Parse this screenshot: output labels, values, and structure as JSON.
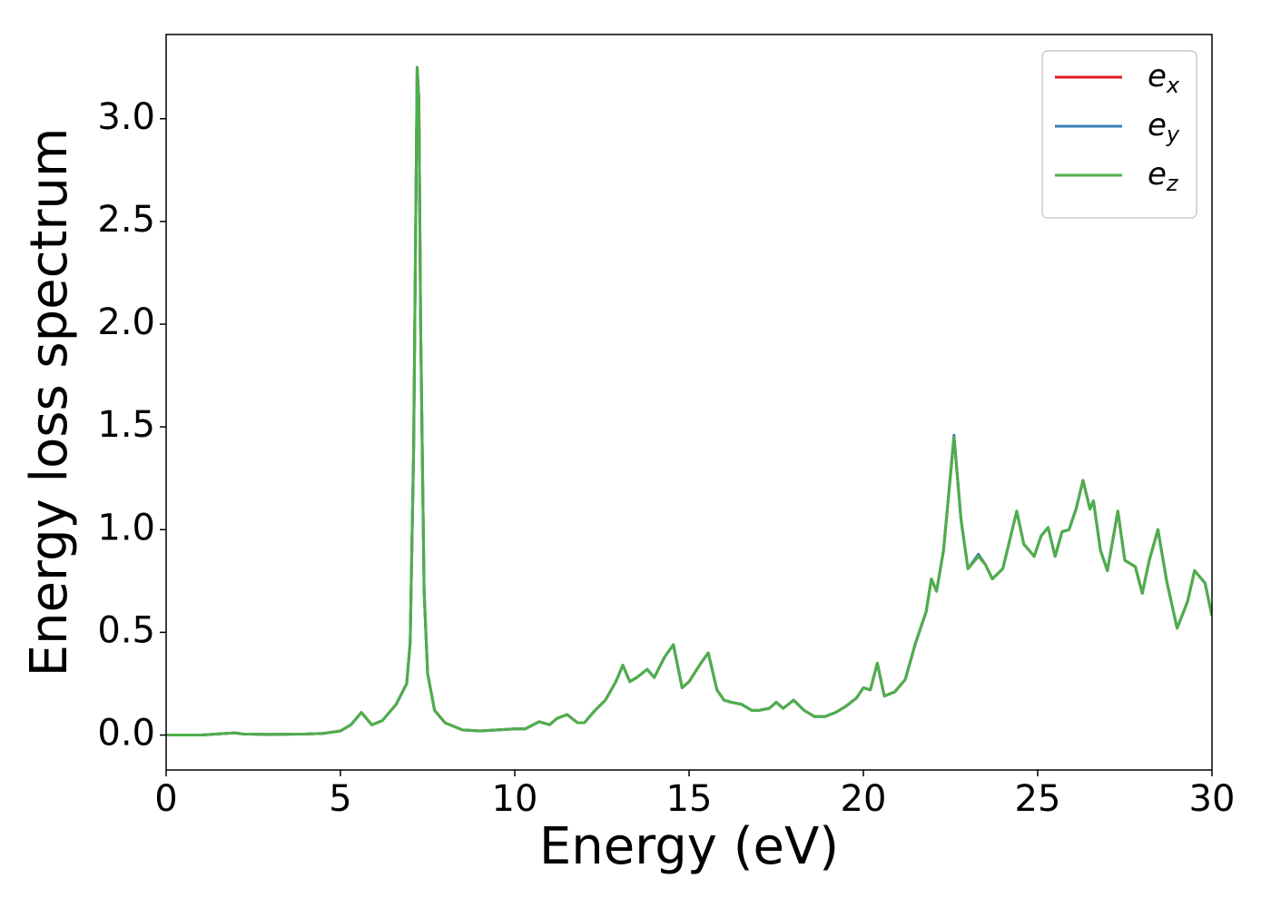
{
  "chart_data": {
    "type": "line",
    "xlabel": "Energy (eV)",
    "ylabel": "Energy loss spectrum",
    "x": [
      0,
      1,
      1.9,
      2.0,
      2.2,
      3,
      4,
      4.5,
      5,
      5.3,
      5.6,
      5.9,
      6.2,
      6.6,
      6.9,
      7.0,
      7.1,
      7.2,
      7.25,
      7.3,
      7.4,
      7.5,
      7.7,
      8.0,
      8.5,
      9,
      9.5,
      10,
      10.3,
      10.7,
      11,
      11.2,
      11.5,
      11.8,
      12,
      12.3,
      12.6,
      12.9,
      13.1,
      13.3,
      13.5,
      13.8,
      14.0,
      14.3,
      14.55,
      14.8,
      15.0,
      15.3,
      15.55,
      15.8,
      16.0,
      16.2,
      16.5,
      16.8,
      17.0,
      17.3,
      17.5,
      17.7,
      18.0,
      18.3,
      18.6,
      18.9,
      19.2,
      19.5,
      19.8,
      20.0,
      20.2,
      20.4,
      20.6,
      20.9,
      21.2,
      21.5,
      21.8,
      21.95,
      22.1,
      22.3,
      22.6,
      22.8,
      23.0,
      23.3,
      23.5,
      23.7,
      24.0,
      24.2,
      24.4,
      24.6,
      24.9,
      25.1,
      25.3,
      25.5,
      25.7,
      25.9,
      26.1,
      26.3,
      26.5,
      26.6,
      26.8,
      27.0,
      27.3,
      27.5,
      27.8,
      28.0,
      28.2,
      28.45,
      28.7,
      29.0,
      29.3,
      29.5,
      29.8,
      30.0
    ],
    "series": [
      {
        "name": "ex",
        "color": "#e41a1c",
        "values": [
          0,
          0,
          0.01,
          0.01,
          0.005,
          0.003,
          0.005,
          0.008,
          0.02,
          0.05,
          0.11,
          0.05,
          0.07,
          0.15,
          0.25,
          0.45,
          1.4,
          3.25,
          3.1,
          2.0,
          0.7,
          0.3,
          0.12,
          0.06,
          0.025,
          0.02,
          0.025,
          0.03,
          0.03,
          0.065,
          0.05,
          0.08,
          0.1,
          0.06,
          0.06,
          0.12,
          0.17,
          0.26,
          0.34,
          0.26,
          0.28,
          0.32,
          0.28,
          0.38,
          0.44,
          0.23,
          0.26,
          0.34,
          0.4,
          0.22,
          0.17,
          0.16,
          0.15,
          0.12,
          0.12,
          0.13,
          0.16,
          0.13,
          0.17,
          0.12,
          0.09,
          0.09,
          0.11,
          0.14,
          0.18,
          0.23,
          0.22,
          0.35,
          0.19,
          0.21,
          0.27,
          0.45,
          0.6,
          0.76,
          0.7,
          0.9,
          1.45,
          1.05,
          0.81,
          0.87,
          0.83,
          0.76,
          0.81,
          0.95,
          1.09,
          0.93,
          0.87,
          0.97,
          1.01,
          0.87,
          0.99,
          1.0,
          1.1,
          1.24,
          1.1,
          1.14,
          0.9,
          0.8,
          1.09,
          0.85,
          0.82,
          0.69,
          0.85,
          1.0,
          0.75,
          0.52,
          0.65,
          0.8,
          0.74,
          0.58
        ]
      },
      {
        "name": "ey",
        "color": "#377eb8",
        "values": [
          0,
          0,
          0.01,
          0.01,
          0.005,
          0.003,
          0.005,
          0.008,
          0.02,
          0.05,
          0.11,
          0.05,
          0.07,
          0.15,
          0.25,
          0.45,
          1.4,
          3.25,
          3.1,
          2.0,
          0.7,
          0.3,
          0.12,
          0.06,
          0.025,
          0.02,
          0.025,
          0.03,
          0.03,
          0.065,
          0.05,
          0.08,
          0.1,
          0.06,
          0.06,
          0.12,
          0.17,
          0.26,
          0.34,
          0.26,
          0.28,
          0.32,
          0.28,
          0.38,
          0.44,
          0.23,
          0.26,
          0.34,
          0.4,
          0.22,
          0.17,
          0.16,
          0.15,
          0.12,
          0.12,
          0.13,
          0.16,
          0.13,
          0.17,
          0.12,
          0.09,
          0.09,
          0.11,
          0.14,
          0.18,
          0.23,
          0.22,
          0.35,
          0.19,
          0.21,
          0.27,
          0.45,
          0.6,
          0.76,
          0.7,
          0.9,
          1.46,
          1.05,
          0.81,
          0.88,
          0.83,
          0.76,
          0.81,
          0.95,
          1.09,
          0.93,
          0.87,
          0.97,
          1.01,
          0.87,
          0.99,
          1.0,
          1.1,
          1.24,
          1.1,
          1.14,
          0.9,
          0.8,
          1.09,
          0.85,
          0.82,
          0.69,
          0.85,
          1.0,
          0.75,
          0.52,
          0.65,
          0.8,
          0.74,
          0.58
        ]
      },
      {
        "name": "ez",
        "color": "#4daf4a",
        "values": [
          0,
          0,
          0.01,
          0.01,
          0.005,
          0.003,
          0.005,
          0.008,
          0.02,
          0.05,
          0.11,
          0.05,
          0.07,
          0.15,
          0.25,
          0.45,
          1.4,
          3.25,
          3.1,
          2.0,
          0.7,
          0.3,
          0.12,
          0.06,
          0.025,
          0.02,
          0.025,
          0.03,
          0.03,
          0.065,
          0.05,
          0.08,
          0.1,
          0.06,
          0.06,
          0.12,
          0.17,
          0.26,
          0.34,
          0.26,
          0.28,
          0.32,
          0.28,
          0.38,
          0.44,
          0.23,
          0.26,
          0.34,
          0.4,
          0.22,
          0.17,
          0.16,
          0.15,
          0.12,
          0.12,
          0.13,
          0.16,
          0.13,
          0.17,
          0.12,
          0.09,
          0.09,
          0.11,
          0.14,
          0.18,
          0.23,
          0.22,
          0.35,
          0.19,
          0.21,
          0.27,
          0.45,
          0.6,
          0.76,
          0.7,
          0.9,
          1.45,
          1.05,
          0.81,
          0.87,
          0.83,
          0.76,
          0.81,
          0.95,
          1.09,
          0.93,
          0.87,
          0.97,
          1.01,
          0.87,
          0.99,
          1.0,
          1.1,
          1.24,
          1.1,
          1.14,
          0.9,
          0.8,
          1.09,
          0.85,
          0.82,
          0.69,
          0.85,
          1.0,
          0.75,
          0.52,
          0.65,
          0.8,
          0.74,
          0.58
        ]
      }
    ],
    "xlim": [
      0,
      30
    ],
    "xticks": [
      0,
      5,
      10,
      15,
      20,
      25,
      30
    ],
    "ylim": [
      -0.17,
      3.41
    ],
    "yticks": [
      {
        "value": 0,
        "label": "0.0"
      },
      0.5,
      {
        "value": 1,
        "label": "1.0"
      },
      1.5,
      {
        "value": 2,
        "label": "2.0"
      },
      2.5,
      {
        "value": 3,
        "label": "3.0"
      }
    ],
    "grid": false,
    "legend": "upper right"
  }
}
